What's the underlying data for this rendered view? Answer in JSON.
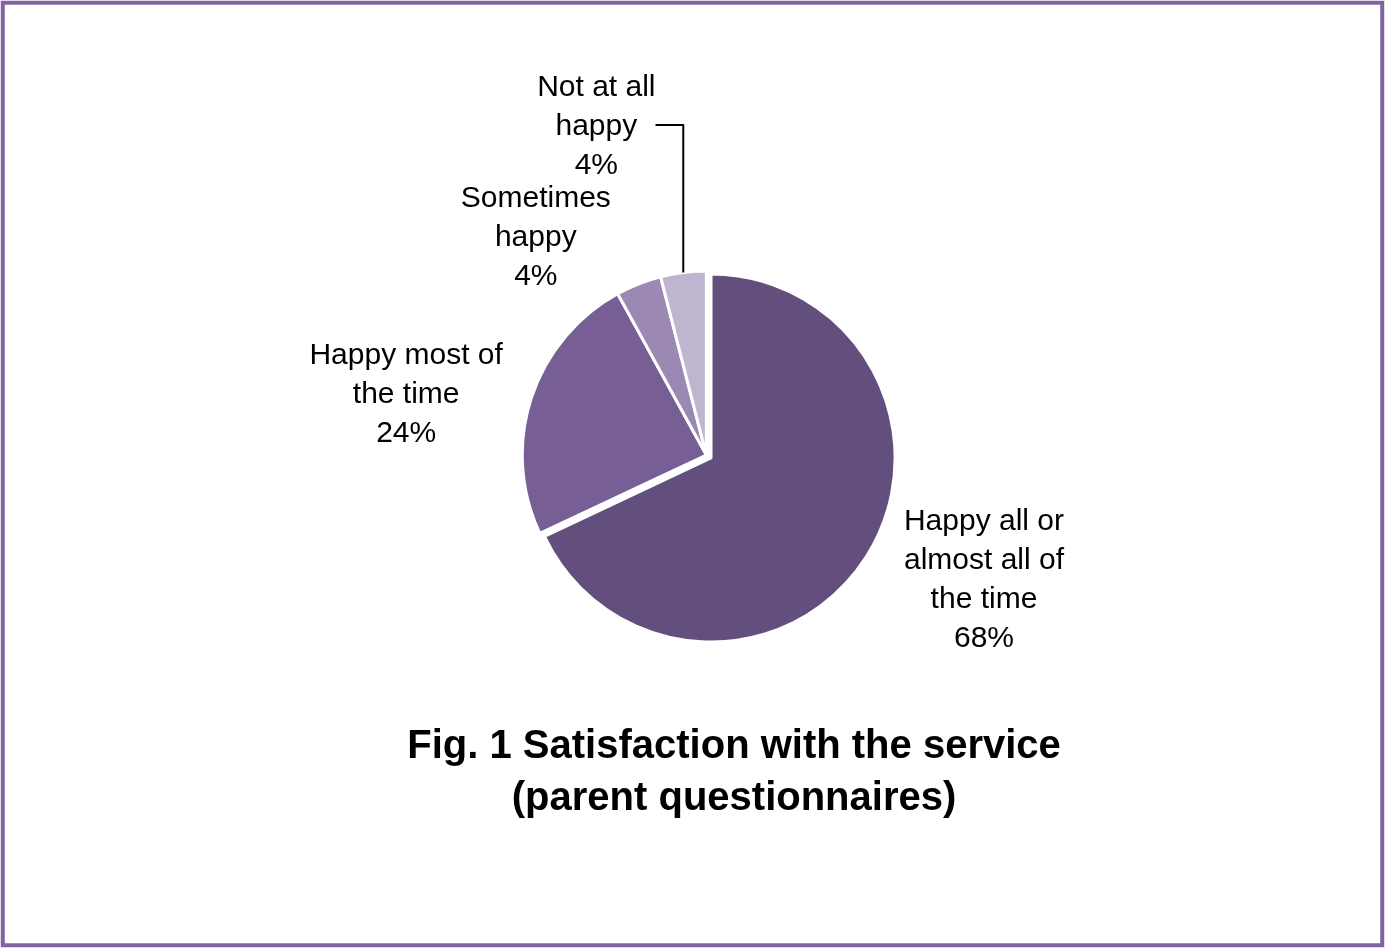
{
  "chart_data": {
    "type": "pie",
    "title": "Fig. 1 Satisfaction with the service (parent questionnaires)",
    "categories": [
      "Happy all or almost all of the time",
      "Happy most of the time",
      "Sometimes happy",
      "Not at all happy"
    ],
    "values": [
      68,
      24,
      4,
      4
    ],
    "value_labels": [
      "68%",
      "24%",
      "4%",
      "4%"
    ],
    "colors": [
      "#634f7d",
      "#775f96",
      "#9c89b3",
      "#c0b5d1"
    ],
    "legend": false
  }
}
